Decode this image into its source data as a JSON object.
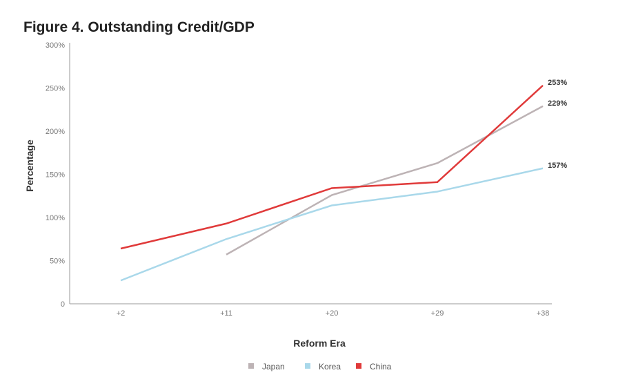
{
  "chart_data": {
    "type": "line",
    "title": "Figure 4. Outstanding Credit/GDP",
    "xlabel": "Reform Era",
    "ylabel": "Percentage",
    "categories": [
      "+2",
      "+11",
      "+20",
      "+29",
      "+38"
    ],
    "yticks": [
      "0",
      "50%",
      "100%",
      "150%",
      "200%",
      "250%",
      "300%"
    ],
    "ylim": [
      0,
      300
    ],
    "grid": false,
    "legend": "bottom",
    "series": [
      {
        "name": "Japan",
        "color": "#bdb3b5",
        "values": [
          null,
          57,
          126,
          163,
          229
        ],
        "end_label": "229%"
      },
      {
        "name": "Korea",
        "color": "#a9d8ea",
        "values": [
          27,
          75,
          114,
          130,
          157
        ],
        "end_label": "157%"
      },
      {
        "name": "China",
        "color": "#e03a3a",
        "values": [
          64,
          93,
          134,
          141,
          253
        ],
        "end_label": "253%"
      }
    ]
  }
}
